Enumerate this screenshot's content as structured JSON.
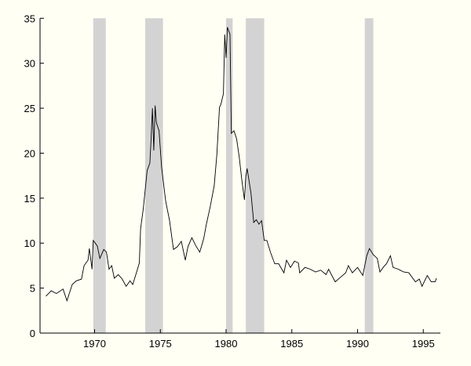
{
  "chart_data": {
    "type": "line",
    "title": "",
    "xlabel": "",
    "ylabel": "",
    "xlim": [
      1965.85,
      1996.3
    ],
    "ylim": [
      0,
      35
    ],
    "grid": false,
    "x_ticks": [
      1970,
      1975,
      1980,
      1985,
      1990,
      1995
    ],
    "y_ticks": [
      0,
      5,
      10,
      15,
      20,
      25,
      30,
      35
    ],
    "colors": {
      "background": "#fffff3",
      "line": "#000000",
      "shaded_band": "#d3d3d3"
    },
    "shaded_periods": [
      [
        1969.9,
        1970.85
      ],
      [
        1973.85,
        1975.2
      ],
      [
        1980.0,
        1980.5
      ],
      [
        1981.5,
        1982.9
      ],
      [
        1990.55,
        1991.2
      ]
    ],
    "series": [
      {
        "x": [
          1966.3,
          1966.7,
          1967.1,
          1967.6,
          1967.9,
          1968.3,
          1968.6,
          1969.0,
          1969.2,
          1969.5,
          1969.6,
          1969.8,
          1969.9,
          1970.2,
          1970.4,
          1970.7,
          1970.9,
          1971.1,
          1971.3,
          1971.5,
          1971.8,
          1972.1,
          1972.4,
          1972.7,
          1972.9,
          1973.2,
          1973.4,
          1973.5,
          1973.7,
          1974.0,
          1974.2,
          1974.3,
          1974.4,
          1974.5,
          1974.6,
          1974.7,
          1974.9,
          1975.1,
          1975.4,
          1975.7,
          1976.0,
          1976.3,
          1976.6,
          1976.9,
          1977.1,
          1977.4,
          1977.7,
          1978.0,
          1978.3,
          1978.5,
          1978.8,
          1979.1,
          1979.3,
          1979.5,
          1979.6,
          1979.8,
          1979.9,
          1980.0,
          1980.1,
          1980.3,
          1980.4,
          1980.6,
          1980.8,
          1981.0,
          1981.2,
          1981.4,
          1981.5,
          1981.6,
          1981.9,
          1982.1,
          1982.3,
          1982.5,
          1982.7,
          1982.9,
          1983.1,
          1983.4,
          1983.7,
          1984.0,
          1984.4,
          1984.6,
          1984.9,
          1985.2,
          1985.5,
          1985.6,
          1986.0,
          1986.4,
          1986.8,
          1987.2,
          1987.6,
          1987.8,
          1988.3,
          1988.7,
          1989.1,
          1989.3,
          1989.6,
          1990.0,
          1990.4,
          1990.7,
          1990.9,
          1991.2,
          1991.5,
          1991.7,
          1992.0,
          1992.2,
          1992.5,
          1992.7,
          1993.1,
          1993.5,
          1993.9,
          1994.4,
          1994.7,
          1994.9,
          1995.1,
          1995.3,
          1995.6,
          1995.9,
          1996.0
        ],
        "y": [
          4.1,
          4.7,
          4.4,
          4.9,
          3.6,
          5.4,
          5.8,
          6.0,
          7.5,
          8.1,
          9.4,
          7.1,
          10.3,
          9.7,
          8.3,
          9.3,
          9.0,
          7.1,
          7.5,
          6.1,
          6.5,
          6.0,
          5.2,
          5.8,
          5.4,
          6.8,
          7.8,
          11.6,
          13.8,
          18.1,
          18.9,
          21.6,
          25.0,
          20.3,
          25.3,
          23.4,
          22.5,
          18.4,
          14.7,
          12.5,
          9.3,
          9.6,
          10.2,
          8.1,
          9.6,
          10.6,
          9.7,
          9.0,
          10.5,
          12.1,
          14.1,
          16.4,
          19.9,
          25.1,
          25.4,
          26.6,
          33.2,
          30.6,
          34.0,
          33.2,
          22.2,
          22.5,
          21.6,
          19.6,
          17.0,
          14.8,
          17.4,
          18.3,
          15.5,
          12.3,
          12.6,
          12.1,
          12.5,
          10.3,
          10.3,
          8.9,
          7.7,
          7.7,
          6.7,
          8.1,
          7.3,
          8.0,
          7.8,
          6.7,
          7.3,
          7.1,
          6.8,
          7.0,
          6.5,
          7.1,
          5.7,
          6.2,
          6.7,
          7.5,
          6.7,
          7.3,
          6.4,
          8.6,
          9.4,
          8.7,
          8.3,
          6.8,
          7.4,
          7.7,
          8.6,
          7.3,
          7.1,
          6.8,
          6.7,
          5.7,
          6.0,
          5.2,
          5.8,
          6.4,
          5.7,
          5.7,
          6.1
        ]
      }
    ]
  }
}
